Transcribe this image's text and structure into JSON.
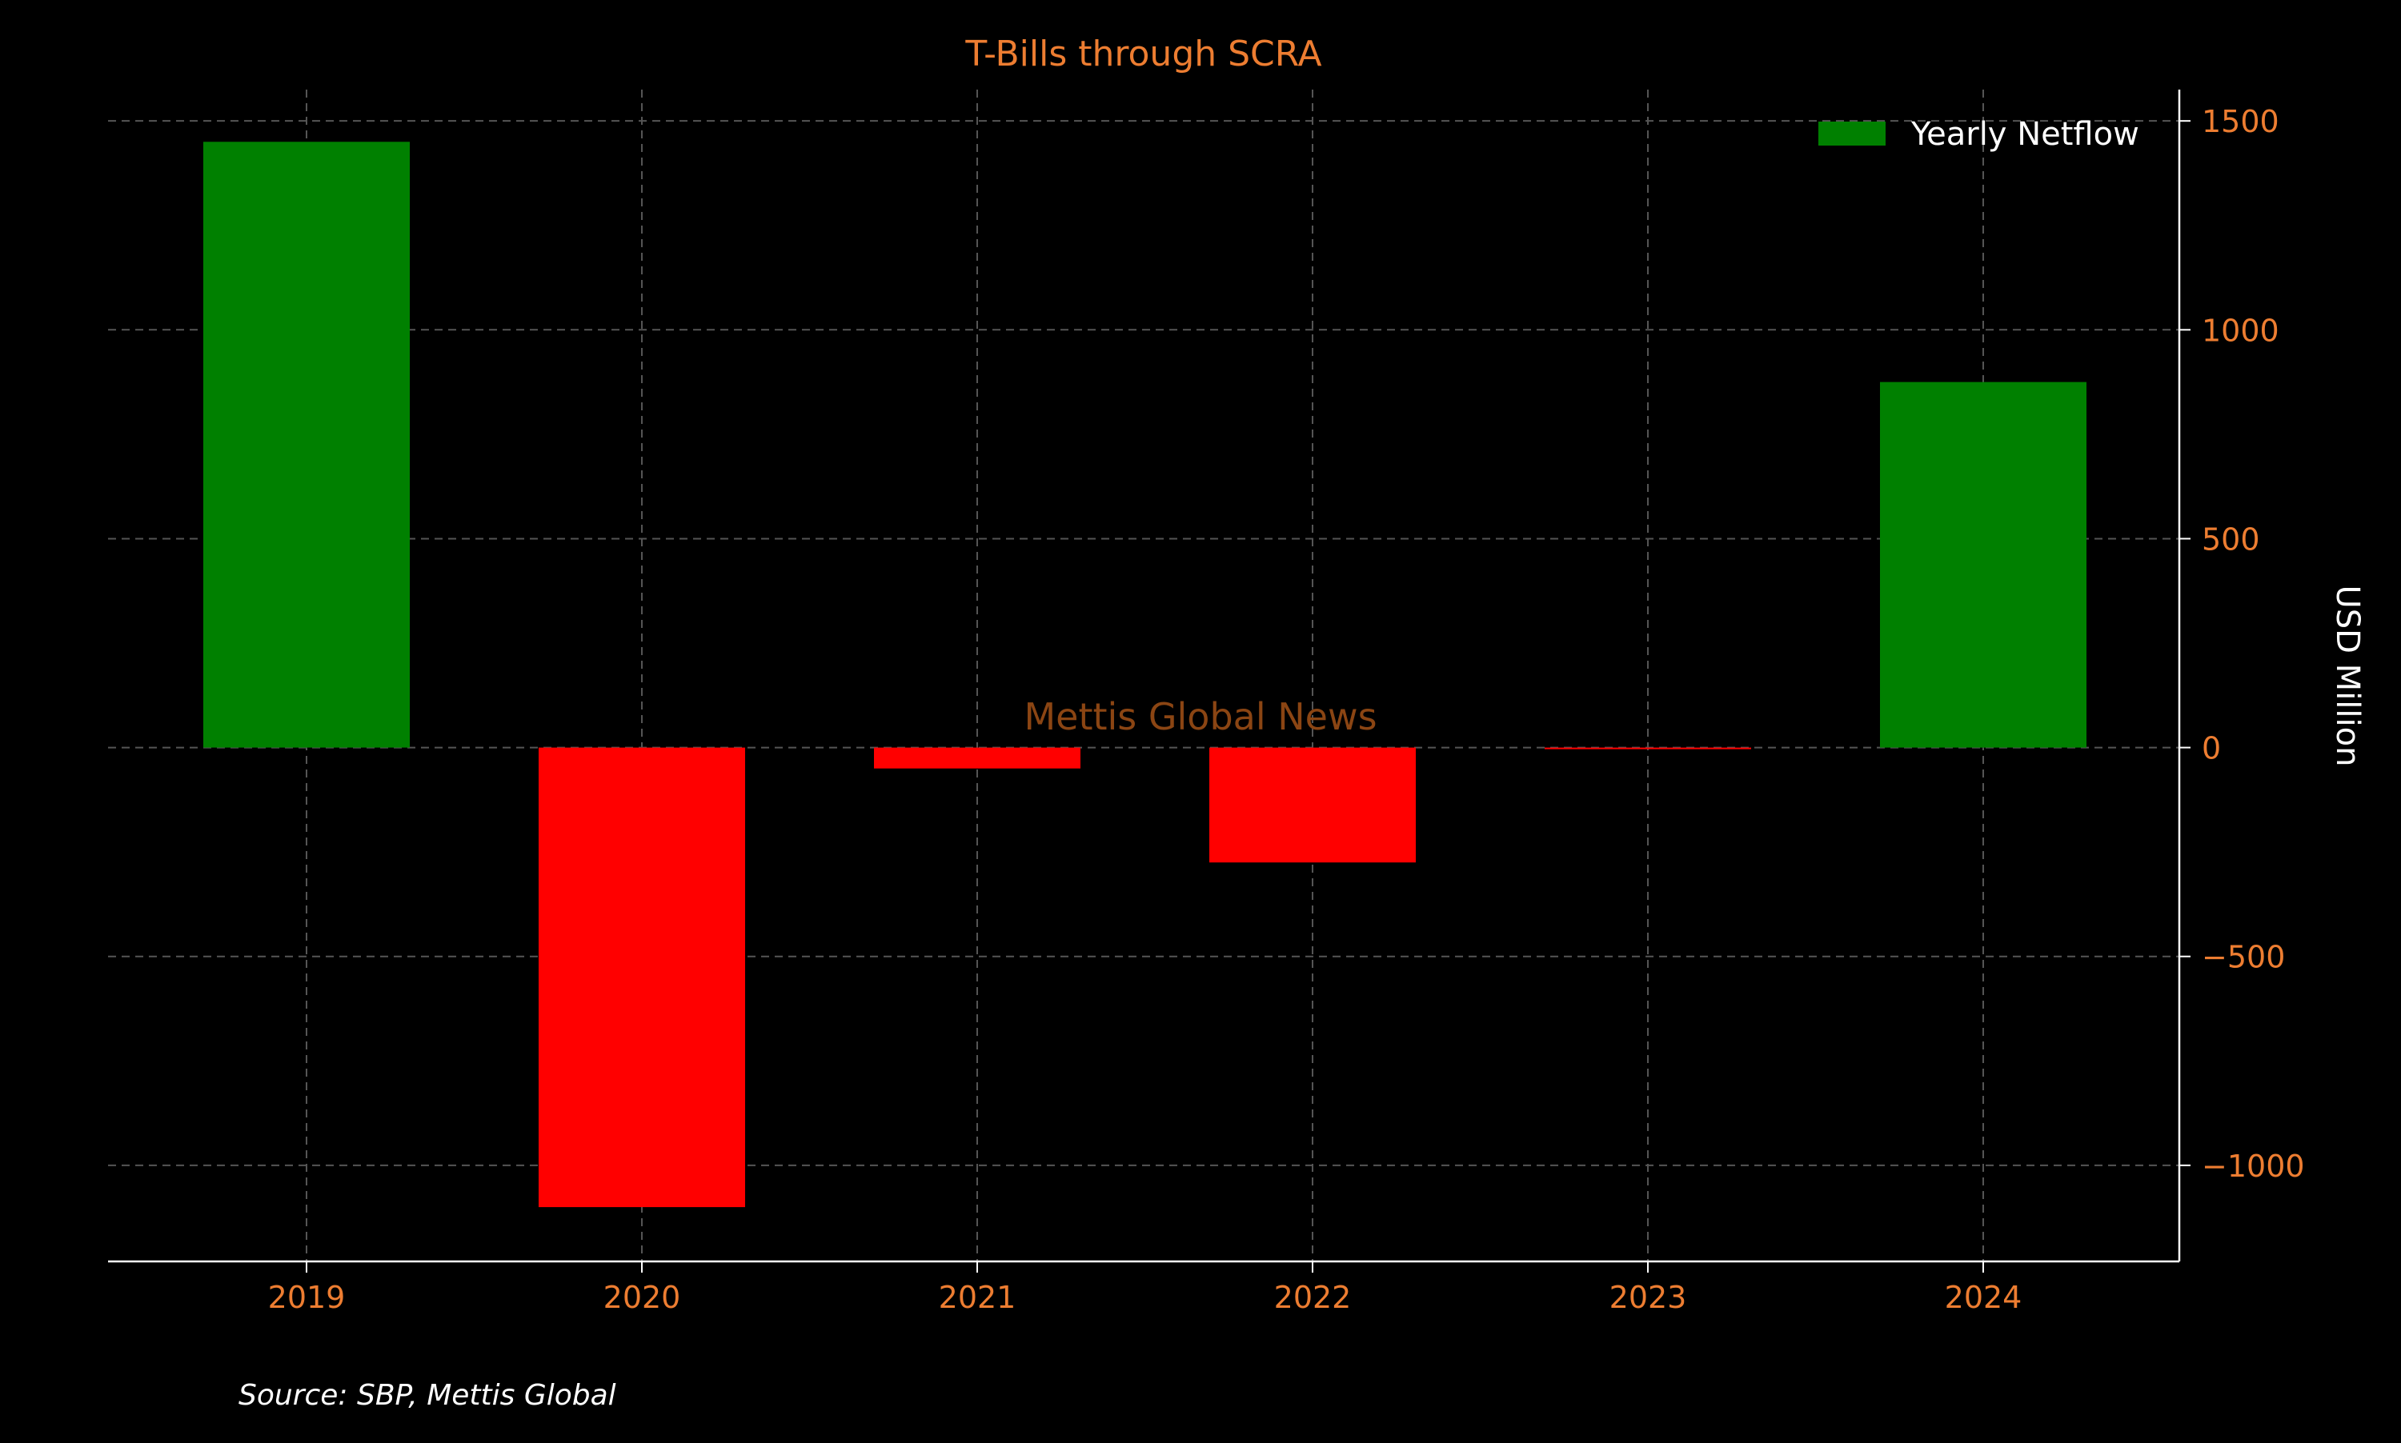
{
  "colors": {
    "background": "#000000",
    "accent_text": "#ED7D31",
    "axis_line": "#FFFFFF",
    "grid": "#555555",
    "positive_bar": "#008000",
    "negative_bar": "#FF0000",
    "watermark": "#8B4513",
    "legend_text": "#FFFFFF"
  },
  "source_note": "Source: SBP, Mettis Global",
  "watermark": "Mettis Global News",
  "chart_data": {
    "type": "bar",
    "title": "T-Bills through SCRA",
    "xlabel": "",
    "ylabel": "USD Million",
    "y_axis_side": "right",
    "categories": [
      "2019",
      "2020",
      "2021",
      "2022",
      "2023",
      "2024"
    ],
    "series": [
      {
        "name": "Yearly Netflow",
        "values": [
          1450,
          -1100,
          -50,
          -275,
          -3,
          875
        ]
      }
    ],
    "ylim": [
      -1230,
      1575
    ],
    "yticks": [
      -1000,
      -500,
      0,
      500,
      1000,
      1500
    ],
    "ytick_labels": [
      "−1000",
      "−500",
      "0",
      "500",
      "1000",
      "1500"
    ],
    "grid": true,
    "legend_position": "top-right"
  }
}
